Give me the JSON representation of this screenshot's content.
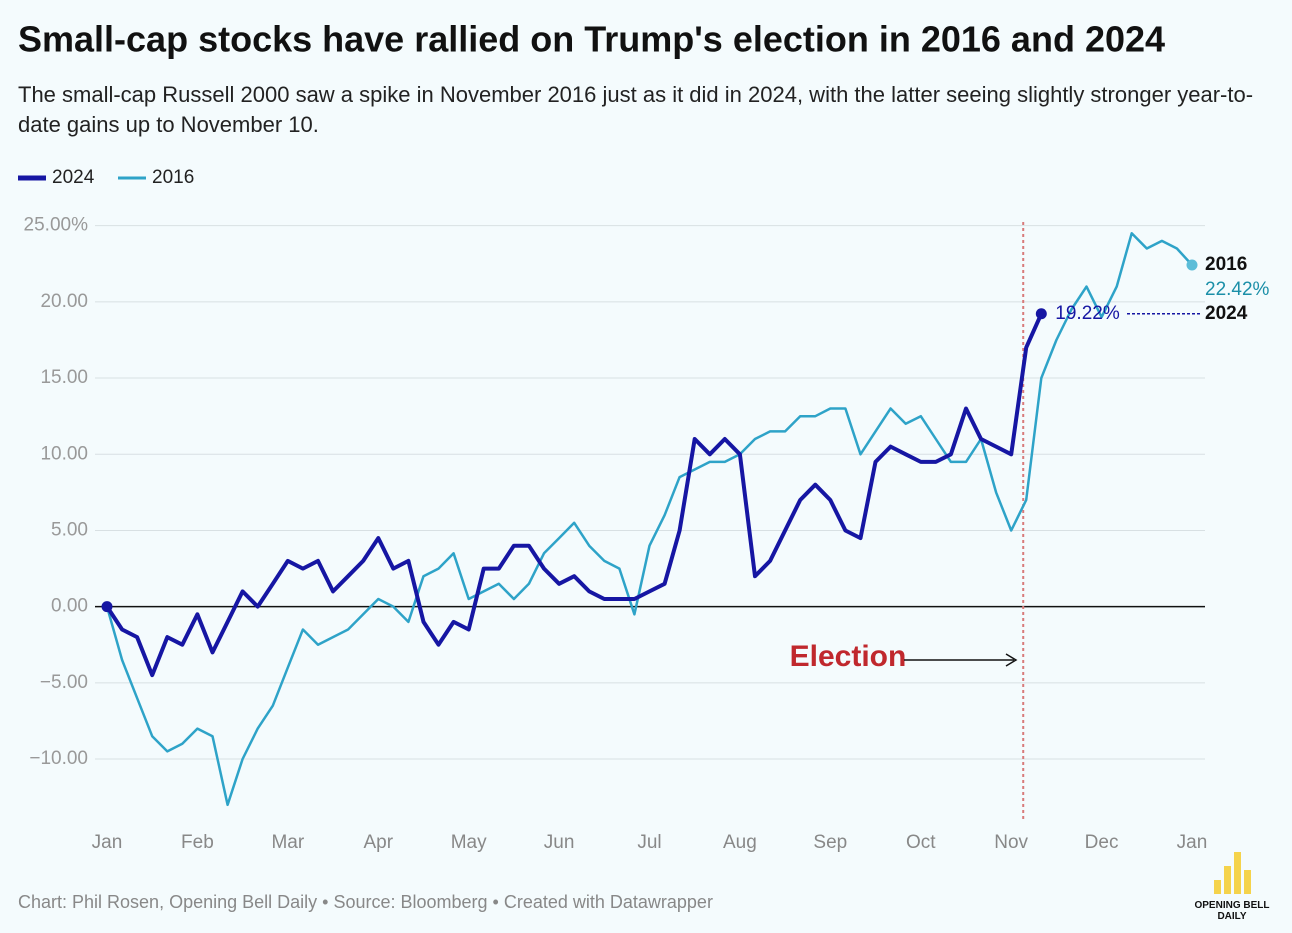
{
  "chart_data": {
    "type": "line",
    "title": "Small-cap stocks have rallied on Trump's election in 2016 and 2024",
    "subtitle": "The small-cap Russell 2000 saw a spike in November 2016 just as it did in 2024, with the latter seeing slightly stronger year-to-date gains up to November 10.",
    "annotation": "Election",
    "footer": "Chart: Phil Rosen, Opening Bell Daily • Source: Bloomberg • Created with Datawrapper",
    "logo": "OPENING BELL DAILY",
    "categories": [
      "Jan",
      null,
      null,
      null,
      null,
      null,
      "Feb",
      null,
      null,
      null,
      null,
      null,
      "Mar",
      null,
      null,
      null,
      null,
      null,
      "Apr",
      null,
      null,
      null,
      null,
      null,
      "May",
      null,
      null,
      null,
      null,
      null,
      "Jun",
      null,
      null,
      null,
      null,
      null,
      "Jul",
      null,
      null,
      null,
      null,
      null,
      "Aug",
      null,
      null,
      null,
      null,
      null,
      "Sep",
      null,
      null,
      null,
      null,
      null,
      "Oct",
      null,
      null,
      null,
      null,
      null,
      "Nov",
      null,
      null,
      null,
      null,
      null,
      "Dec",
      null,
      null,
      null,
      null,
      null,
      "Jan"
    ],
    "series": [
      {
        "name": "2024",
        "color": "#1616a3",
        "values": [
          0,
          -1.5,
          -2,
          -4.5,
          -2,
          -2.5,
          -0.5,
          -3,
          -1,
          1,
          0,
          1.5,
          3,
          2.5,
          3,
          1,
          2,
          3,
          4.5,
          2.5,
          3,
          -1,
          -2.5,
          -1,
          -1.5,
          2.5,
          2.5,
          4,
          4,
          2.5,
          1.5,
          2,
          1,
          0.5,
          0.5,
          0.5,
          1,
          1.5,
          5,
          11,
          10,
          11,
          10,
          2,
          3,
          5,
          7,
          8,
          7,
          5,
          4.5,
          9.5,
          10.5,
          10,
          9.5,
          9.5,
          10,
          13,
          11,
          10.5,
          10,
          17,
          19.22,
          null,
          null,
          null,
          null,
          null,
          null,
          null,
          null,
          null,
          null
        ],
        "value_labels": [
          null,
          null,
          null,
          null,
          null,
          null,
          null,
          null,
          null,
          null,
          null,
          null,
          null,
          null,
          null,
          null,
          null,
          null,
          null,
          null,
          null,
          null,
          null,
          null,
          null,
          null,
          null,
          null,
          null,
          null,
          null,
          null,
          null,
          null,
          null,
          null,
          null,
          null,
          null,
          null,
          null,
          null,
          null,
          null,
          null,
          null,
          null,
          null,
          null,
          null,
          null,
          null,
          null,
          null,
          null,
          null,
          null,
          null,
          null,
          null,
          null,
          null,
          "19.22%",
          null,
          null,
          null,
          null,
          null,
          null,
          null,
          null,
          null,
          null
        ]
      },
      {
        "name": "2016",
        "color": "#2ea3c8",
        "values": [
          0,
          -3.5,
          -6,
          -8.5,
          -9.5,
          -9,
          -8,
          -8.5,
          -13,
          -10,
          -8,
          -6.5,
          -4,
          -1.5,
          -2.5,
          -2,
          -1.5,
          -0.5,
          0.5,
          0,
          -1,
          2,
          2.5,
          3.5,
          0.5,
          1,
          1.5,
          0.5,
          1.5,
          3.5,
          4.5,
          5.5,
          4,
          3,
          2.5,
          -0.5,
          4,
          6,
          8.5,
          9,
          9.5,
          9.5,
          10,
          11,
          11.5,
          11.5,
          12.5,
          12.5,
          13,
          13,
          10,
          11.5,
          13,
          12,
          12.5,
          11,
          9.5,
          9.5,
          11,
          7.5,
          5,
          7,
          15,
          17.5,
          19.5,
          21,
          19,
          21,
          24.5,
          23.5,
          24,
          23.5,
          22.42
        ],
        "value_labels": [
          null,
          null,
          null,
          null,
          null,
          null,
          null,
          null,
          null,
          null,
          null,
          null,
          null,
          null,
          null,
          null,
          null,
          null,
          null,
          null,
          null,
          null,
          null,
          null,
          null,
          null,
          null,
          null,
          null,
          null,
          null,
          null,
          null,
          null,
          null,
          null,
          null,
          null,
          null,
          null,
          null,
          null,
          null,
          null,
          null,
          null,
          null,
          null,
          null,
          null,
          null,
          null,
          null,
          null,
          null,
          null,
          null,
          null,
          null,
          null,
          null,
          null,
          null,
          null,
          null,
          null,
          null,
          null,
          null,
          null,
          null,
          null,
          "22.42%"
        ]
      }
    ],
    "ylim": [
      -14,
      25.7
    ],
    "yticks": [
      {
        "value": -10,
        "label": "−10.00"
      },
      {
        "value": -5,
        "label": "−5.00"
      },
      {
        "value": 0,
        "label": "0.00"
      },
      {
        "value": 5,
        "label": "5.00"
      },
      {
        "value": 10,
        "label": "10.00"
      },
      {
        "value": 15,
        "label": "15.00"
      },
      {
        "value": 20,
        "label": "20.00"
      },
      {
        "value": 25,
        "label": "25.00%"
      }
    ],
    "grid": true
  }
}
